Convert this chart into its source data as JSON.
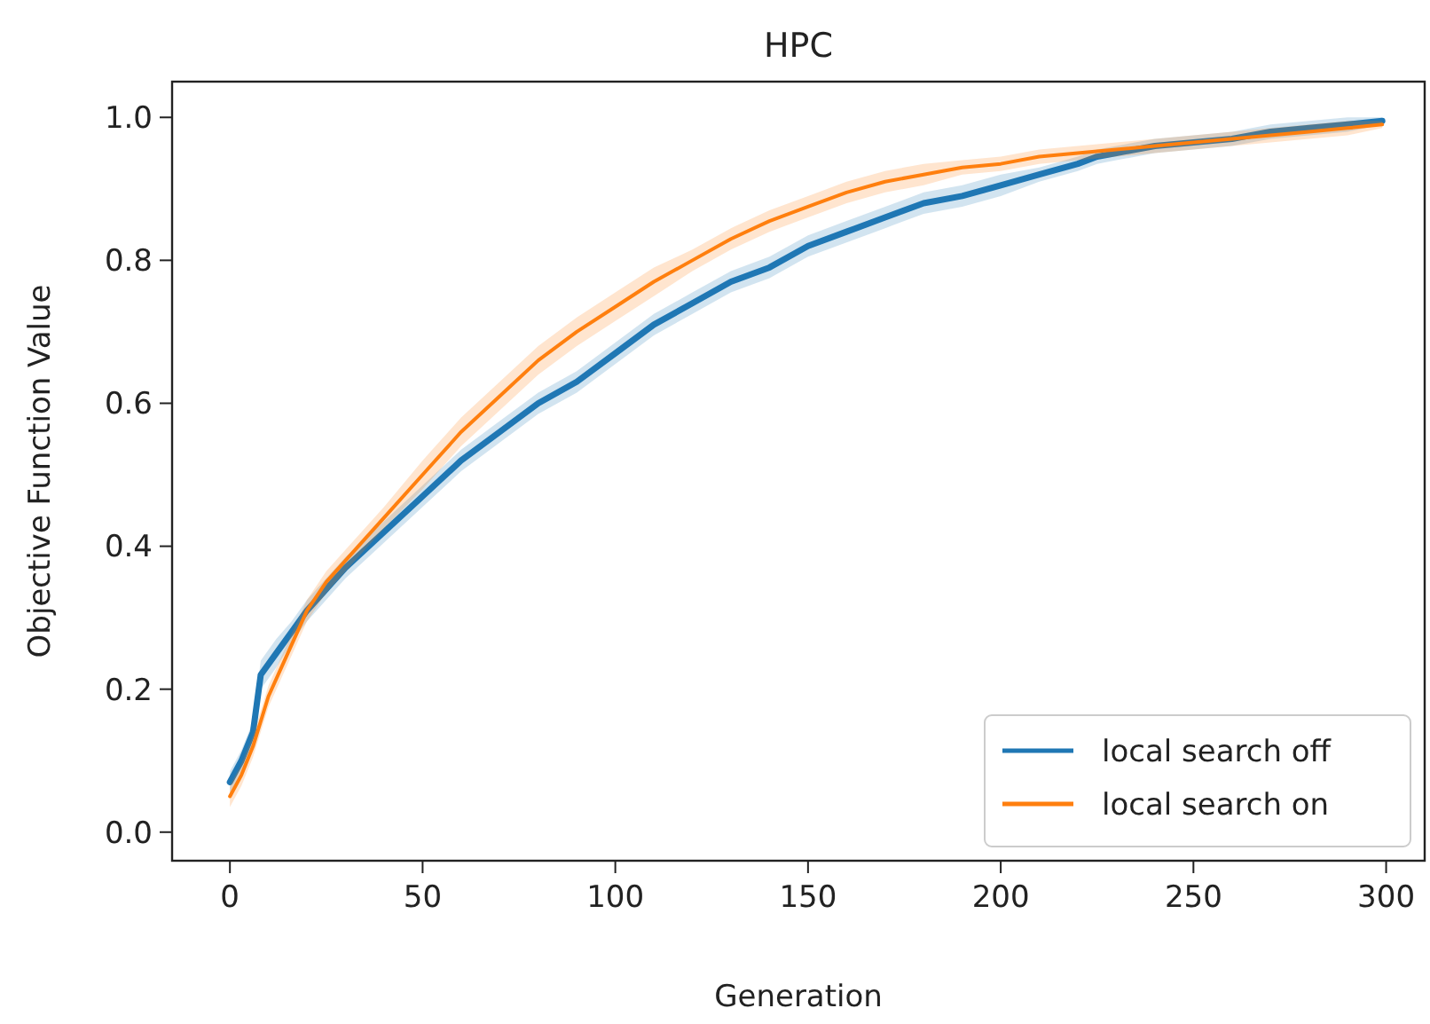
{
  "chart_data": {
    "type": "line",
    "title": "HPC",
    "xlabel": "Generation",
    "ylabel": "Objective Function Value",
    "xlim": [
      -15,
      310
    ],
    "xticks": [
      0,
      50,
      100,
      150,
      200,
      250,
      300
    ],
    "ylim": [
      -0.04,
      1.05
    ],
    "yticks": [
      {
        "value": 0,
        "label": "0.0"
      },
      {
        "value": 0.2,
        "label": "0.2"
      },
      {
        "value": 0.4,
        "label": "0.4"
      },
      {
        "value": 0.6,
        "label": "0.6"
      },
      {
        "value": 0.8,
        "label": "0.8"
      },
      {
        "value": 1,
        "label": "1.0"
      }
    ],
    "grid": false,
    "legend": "bottom right",
    "line_style": "solid",
    "series": [
      {
        "name": "local search off",
        "color": "#1f77b4",
        "x": [
          0,
          3,
          6,
          8,
          12,
          16,
          20,
          25,
          30,
          40,
          50,
          60,
          70,
          80,
          90,
          100,
          110,
          120,
          130,
          140,
          150,
          160,
          170,
          180,
          190,
          200,
          210,
          220,
          225,
          230,
          240,
          250,
          260,
          270,
          280,
          290,
          299
        ],
        "values": [
          0.07,
          0.1,
          0.14,
          0.22,
          0.25,
          0.28,
          0.31,
          0.34,
          0.37,
          0.42,
          0.47,
          0.52,
          0.56,
          0.6,
          0.63,
          0.67,
          0.71,
          0.74,
          0.77,
          0.79,
          0.82,
          0.84,
          0.86,
          0.88,
          0.89,
          0.905,
          0.92,
          0.935,
          0.945,
          0.95,
          0.96,
          0.965,
          0.97,
          0.98,
          0.985,
          0.99,
          0.995
        ],
        "lower": [
          0.055,
          0.085,
          0.125,
          0.2,
          0.23,
          0.265,
          0.295,
          0.325,
          0.355,
          0.405,
          0.455,
          0.505,
          0.545,
          0.585,
          0.615,
          0.655,
          0.695,
          0.725,
          0.755,
          0.775,
          0.805,
          0.825,
          0.845,
          0.865,
          0.875,
          0.89,
          0.91,
          0.925,
          0.935,
          0.94,
          0.95,
          0.955,
          0.96,
          0.97,
          0.975,
          0.98,
          0.99
        ],
        "upper": [
          0.085,
          0.115,
          0.155,
          0.24,
          0.27,
          0.295,
          0.325,
          0.355,
          0.385,
          0.435,
          0.485,
          0.535,
          0.575,
          0.615,
          0.645,
          0.685,
          0.725,
          0.755,
          0.785,
          0.805,
          0.835,
          0.855,
          0.875,
          0.895,
          0.905,
          0.92,
          0.93,
          0.945,
          0.955,
          0.96,
          0.97,
          0.975,
          0.98,
          0.99,
          0.995,
          1.0,
          1.0
        ]
      },
      {
        "name": "local search on",
        "color": "#ff7f0e",
        "x": [
          0,
          3,
          6,
          10,
          15,
          20,
          25,
          30,
          40,
          50,
          60,
          70,
          80,
          90,
          100,
          110,
          120,
          130,
          140,
          150,
          160,
          170,
          180,
          190,
          200,
          210,
          220,
          230,
          240,
          250,
          260,
          270,
          280,
          290,
          299
        ],
        "values": [
          0.05,
          0.08,
          0.12,
          0.19,
          0.25,
          0.31,
          0.35,
          0.38,
          0.44,
          0.5,
          0.56,
          0.61,
          0.66,
          0.7,
          0.735,
          0.77,
          0.8,
          0.83,
          0.855,
          0.875,
          0.895,
          0.91,
          0.92,
          0.93,
          0.935,
          0.945,
          0.95,
          0.955,
          0.96,
          0.965,
          0.97,
          0.975,
          0.98,
          0.985,
          0.99
        ],
        "lower": [
          0.035,
          0.065,
          0.105,
          0.175,
          0.235,
          0.295,
          0.335,
          0.365,
          0.425,
          0.48,
          0.54,
          0.59,
          0.64,
          0.68,
          0.715,
          0.75,
          0.785,
          0.815,
          0.84,
          0.86,
          0.88,
          0.895,
          0.905,
          0.92,
          0.925,
          0.935,
          0.94,
          0.945,
          0.95,
          0.955,
          0.96,
          0.965,
          0.97,
          0.975,
          0.985
        ],
        "upper": [
          0.065,
          0.095,
          0.135,
          0.205,
          0.265,
          0.325,
          0.365,
          0.395,
          0.455,
          0.52,
          0.58,
          0.63,
          0.68,
          0.72,
          0.755,
          0.79,
          0.815,
          0.845,
          0.87,
          0.89,
          0.91,
          0.925,
          0.935,
          0.94,
          0.945,
          0.955,
          0.96,
          0.965,
          0.97,
          0.975,
          0.98,
          0.985,
          0.99,
          0.995,
          0.995
        ]
      }
    ]
  }
}
